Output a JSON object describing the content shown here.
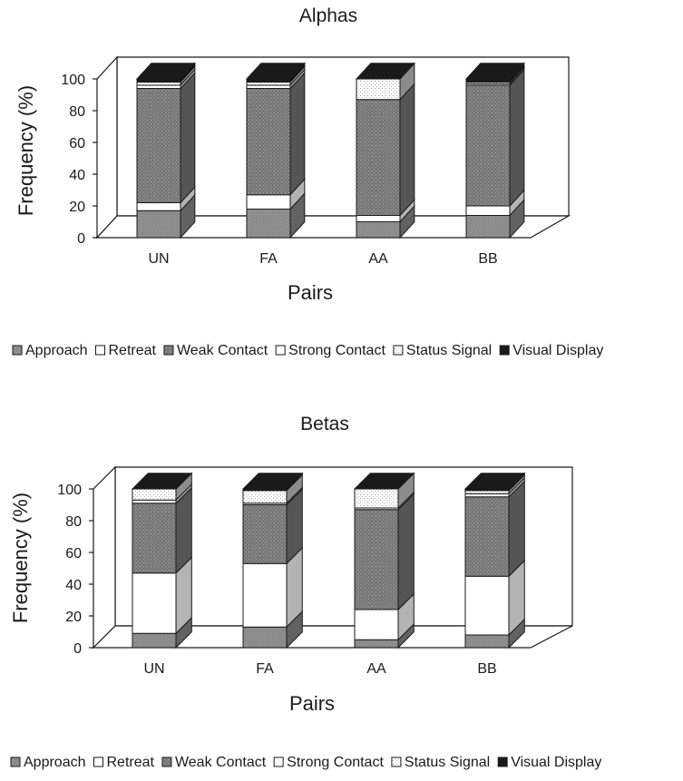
{
  "legend": {
    "items": [
      {
        "label": "Approach",
        "fill": "pat-approach"
      },
      {
        "label": "Retreat",
        "fill": "pat-retreat"
      },
      {
        "label": "Weak Contact",
        "fill": "pat-weak"
      },
      {
        "label": "Strong Contact",
        "fill": "pat-strong"
      },
      {
        "label": "Status Signal",
        "fill": "pat-status"
      },
      {
        "label": "Visual Display",
        "fill": "pat-visual"
      }
    ]
  },
  "colors": {
    "approach": "#8c8c8c",
    "retreat": "#ffffff",
    "weak_contact": "#7a7a7a",
    "strong_contact": "#ffffff",
    "status_signal": "#c8c8c8",
    "visual_display": "#1a1a1a",
    "axis": "#1a1a1a"
  },
  "chart_data": [
    {
      "type": "bar",
      "stacked": true,
      "three_d": true,
      "title": "Alphas",
      "xlabel": "Pairs",
      "ylabel": "Frequency (%)",
      "ylim": [
        0,
        100
      ],
      "yticks": [
        0,
        20,
        40,
        60,
        80,
        100
      ],
      "categories": [
        "UN",
        "FA",
        "AA",
        "BB"
      ],
      "series": [
        {
          "name": "Approach",
          "values": [
            17,
            18,
            10,
            14
          ]
        },
        {
          "name": "Retreat",
          "values": [
            5,
            9,
            4,
            6
          ]
        },
        {
          "name": "Weak Contact",
          "values": [
            72,
            67,
            73,
            76
          ]
        },
        {
          "name": "Strong Contact",
          "values": [
            2,
            2,
            0,
            1
          ]
        },
        {
          "name": "Status Signal",
          "values": [
            2,
            2,
            13,
            1
          ]
        },
        {
          "name": "Visual Display",
          "values": [
            2,
            2,
            0,
            2
          ]
        }
      ]
    },
    {
      "type": "bar",
      "stacked": true,
      "three_d": true,
      "title": "Betas",
      "xlabel": "Pairs",
      "ylabel": "Frequency (%)",
      "ylim": [
        0,
        100
      ],
      "yticks": [
        0,
        20,
        40,
        60,
        80,
        100
      ],
      "categories": [
        "UN",
        "FA",
        "AA",
        "BB"
      ],
      "series": [
        {
          "name": "Approach",
          "values": [
            9,
            13,
            5,
            8
          ]
        },
        {
          "name": "Retreat",
          "values": [
            38,
            40,
            19,
            37
          ]
        },
        {
          "name": "Weak Contact",
          "values": [
            44,
            37,
            63,
            50
          ]
        },
        {
          "name": "Strong Contact",
          "values": [
            2,
            1,
            1,
            2
          ]
        },
        {
          "name": "Status Signal",
          "values": [
            7,
            8,
            12,
            2
          ]
        },
        {
          "name": "Visual Display",
          "values": [
            0,
            1,
            0,
            1
          ]
        }
      ]
    }
  ]
}
